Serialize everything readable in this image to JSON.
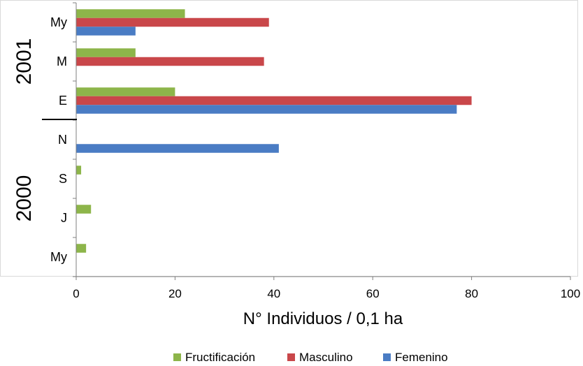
{
  "chart_data": {
    "type": "bar",
    "orientation": "horizontal",
    "categories": [
      "My",
      "M",
      "E",
      "N",
      "S",
      "J",
      "My"
    ],
    "groups": [
      {
        "label": "2001",
        "categories": [
          "My",
          "M",
          "E"
        ]
      },
      {
        "label": "2000",
        "categories": [
          "N",
          "S",
          "J",
          "My"
        ]
      }
    ],
    "series": [
      {
        "name": "Fructificación",
        "color": "#8db54a",
        "values": [
          22,
          12,
          20,
          0,
          1,
          3,
          2
        ]
      },
      {
        "name": "Masculino",
        "color": "#c9474a",
        "values": [
          39,
          38,
          80,
          0,
          0,
          0,
          0
        ]
      },
      {
        "name": "Femenino",
        "color": "#4a7cc4",
        "values": [
          12,
          0,
          77,
          41,
          0,
          0,
          0
        ]
      }
    ],
    "xlabel": "N° Individuos / 0,1 ha",
    "ylabel": "",
    "xlim": [
      0,
      100
    ],
    "xticks": [
      "0",
      "20",
      "40",
      "60",
      "80",
      "100"
    ],
    "grid": false,
    "legend_position": "bottom"
  }
}
